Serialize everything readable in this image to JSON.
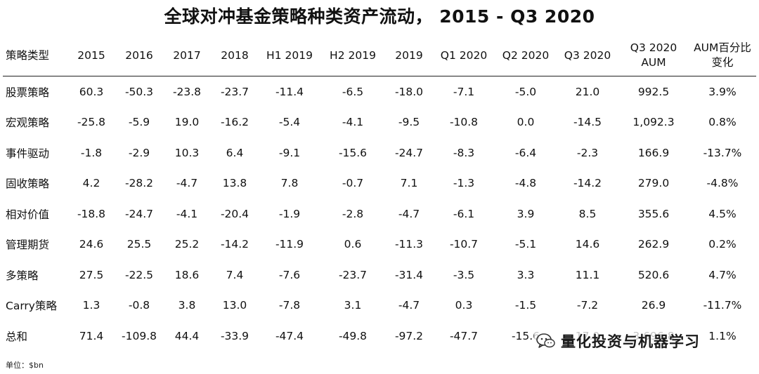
{
  "title": "全球对冲基金策略种类资产流动， 2015 - Q3 2020",
  "headers": [
    [
      "策略类型"
    ],
    [
      "2015"
    ],
    [
      "2016"
    ],
    [
      "2017"
    ],
    [
      "2018"
    ],
    [
      "H1 2019"
    ],
    [
      "H2 2019"
    ],
    [
      "2019"
    ],
    [
      "Q1 2020"
    ],
    [
      "Q2 2020"
    ],
    [
      "Q3 2020"
    ],
    [
      "Q3 2020",
      "AUM"
    ],
    [
      "AUM百分比",
      "变化"
    ]
  ],
  "rows": [
    [
      "股票策略",
      "60.3",
      "-50.3",
      "-23.8",
      "-23.7",
      "-11.4",
      "-6.5",
      "-18.0",
      "-7.1",
      "-5.0",
      "21.0",
      "992.5",
      "3.9%"
    ],
    [
      "宏观策略",
      "-25.8",
      "-5.9",
      "19.0",
      "-16.2",
      "-5.4",
      "-4.1",
      "-9.5",
      "-10.8",
      "0.0",
      "-14.5",
      "1,092.3",
      "0.8%"
    ],
    [
      "事件驱动",
      "-1.8",
      "-2.9",
      "10.3",
      "6.4",
      "-9.1",
      "-15.6",
      "-24.7",
      "-8.3",
      "-6.4",
      "-2.3",
      "166.9",
      "-13.7%"
    ],
    [
      "固收策略",
      "4.2",
      "-28.2",
      "-4.7",
      "13.8",
      "7.8",
      "-0.7",
      "7.1",
      "-1.3",
      "-4.8",
      "-14.2",
      "279.0",
      "-4.8%"
    ],
    [
      "相对价值",
      "-18.8",
      "-24.7",
      "-4.1",
      "-20.4",
      "-1.9",
      "-2.8",
      "-4.7",
      "-6.1",
      "3.9",
      "8.5",
      "355.6",
      "4.5%"
    ],
    [
      "管理期货",
      "24.6",
      "25.5",
      "25.2",
      "-14.2",
      "-11.9",
      "0.6",
      "-11.3",
      "-10.7",
      "-5.1",
      "14.6",
      "262.9",
      "0.2%"
    ],
    [
      "多策略",
      "27.5",
      "-22.5",
      "18.6",
      "7.4",
      "-7.6",
      "-23.7",
      "-31.4",
      "-3.5",
      "3.3",
      "11.1",
      "520.6",
      "4.7%"
    ],
    [
      "Carry策略",
      "1.3",
      "-0.8",
      "3.8",
      "13.0",
      "-7.8",
      "3.1",
      "-4.7",
      "0.3",
      "-1.5",
      "-7.2",
      "26.9",
      "-11.7%"
    ],
    [
      "总和",
      "71.4",
      "-109.8",
      "44.4",
      "-33.9",
      "-47.4",
      "-49.8",
      "-97.2",
      "-47.7",
      "-15.6",
      "17.0",
      "3,696.8",
      "1.1%"
    ]
  ],
  "unit_note": "单位：$bn",
  "watermark": {
    "text": "量化投资与机器学习",
    "icon": "wechat-icon"
  }
}
